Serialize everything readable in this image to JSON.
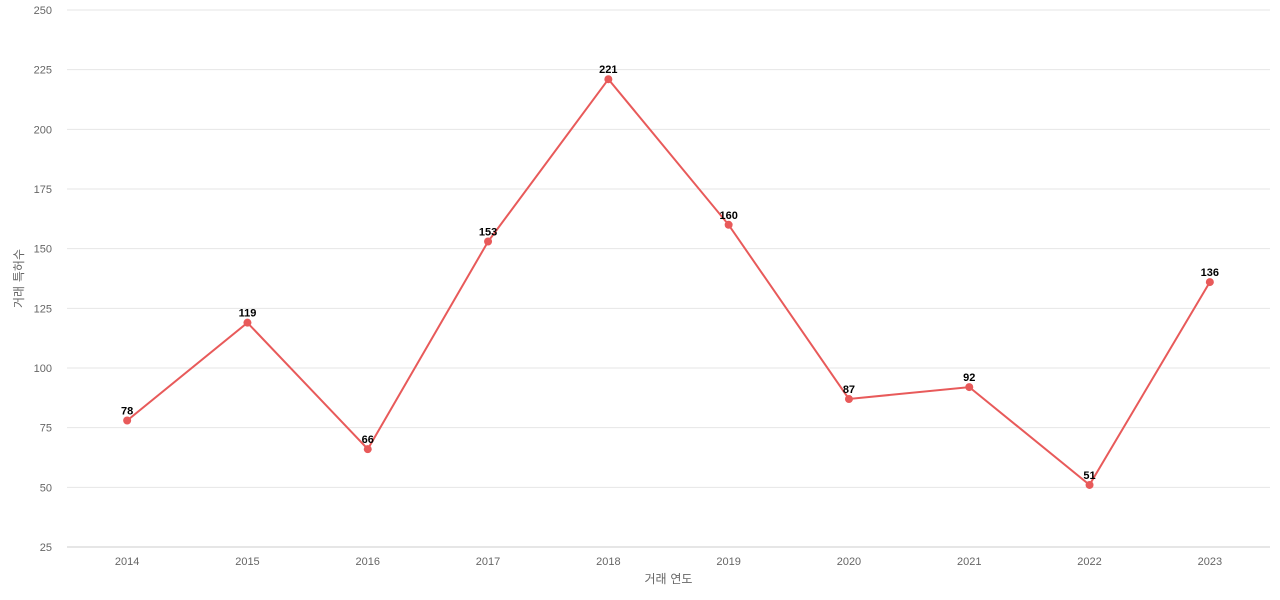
{
  "chart_data": {
    "type": "line",
    "categories": [
      "2014",
      "2015",
      "2016",
      "2017",
      "2018",
      "2019",
      "2020",
      "2021",
      "2022",
      "2023"
    ],
    "series": [
      {
        "values": [
          78,
          119,
          66,
          153,
          221,
          160,
          87,
          92,
          51,
          136
        ]
      }
    ],
    "xlabel": "거래 연도",
    "ylabel": "거래 특허수",
    "ylim": [
      25,
      250
    ],
    "yticks": [
      25,
      50,
      75,
      100,
      125,
      150,
      175,
      200,
      225,
      250
    ],
    "data_labels": true,
    "grid": "horizontal",
    "legend": "none",
    "colors": {
      "line": "#e85a5a",
      "grid": "#e6e6e6",
      "axis": "#cccccc",
      "text": "#666666",
      "label": "#000000"
    }
  }
}
